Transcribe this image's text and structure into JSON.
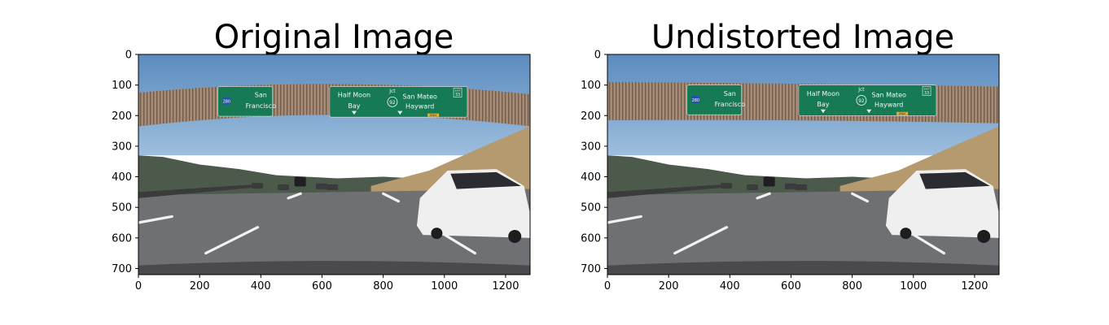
{
  "panels": [
    {
      "id": "original",
      "title": "Original Image",
      "x_ticks": [
        "0",
        "200",
        "400",
        "600",
        "800",
        "1000",
        "1200"
      ],
      "y_ticks": [
        "0",
        "100",
        "200",
        "300",
        "400",
        "500",
        "600",
        "700"
      ],
      "x_range": [
        0,
        1280
      ],
      "y_range": [
        0,
        720
      ],
      "signs": [
        {
          "shield": "280",
          "lines": [
            "San",
            "Francisco"
          ]
        },
        {
          "lines": [
            "Half Moon",
            "Bay"
          ],
          "jct": "Jct",
          "shield": "92"
        },
        {
          "lines": [
            "San Mateo",
            "Hayward"
          ],
          "exit": [
            "EXIT",
            "33"
          ],
          "plate": "ONLY"
        }
      ]
    },
    {
      "id": "undistorted",
      "title": "Undistorted Image",
      "x_ticks": [
        "0",
        "200",
        "400",
        "600",
        "800",
        "1000",
        "1200"
      ],
      "y_ticks": [
        "0",
        "100",
        "200",
        "300",
        "400",
        "500",
        "600",
        "700"
      ],
      "x_range": [
        0,
        1280
      ],
      "y_range": [
        0,
        720
      ],
      "signs": [
        {
          "shield": "280",
          "lines": [
            "San",
            "Francisco"
          ]
        },
        {
          "lines": [
            "Half Moon",
            "Bay"
          ],
          "jct": "Jct",
          "shield": "92"
        },
        {
          "lines": [
            "San Mateo",
            "Hayward"
          ],
          "exit": [
            "EXIT",
            "33"
          ],
          "plate": "ONLY"
        }
      ]
    }
  ],
  "colors": {
    "sky_top": "#5b8bbe",
    "sky_bottom": "#9dbede",
    "hills": "#4b5a4a",
    "dry_hill": "#b49a6e",
    "road": "#6e7073",
    "lane": "#f2f2f2",
    "bridge": "#a88a72",
    "bridge_dark": "#6d5a4b",
    "sign": "#167b55",
    "car": "#efefef",
    "hood": "#4a4a4e"
  }
}
